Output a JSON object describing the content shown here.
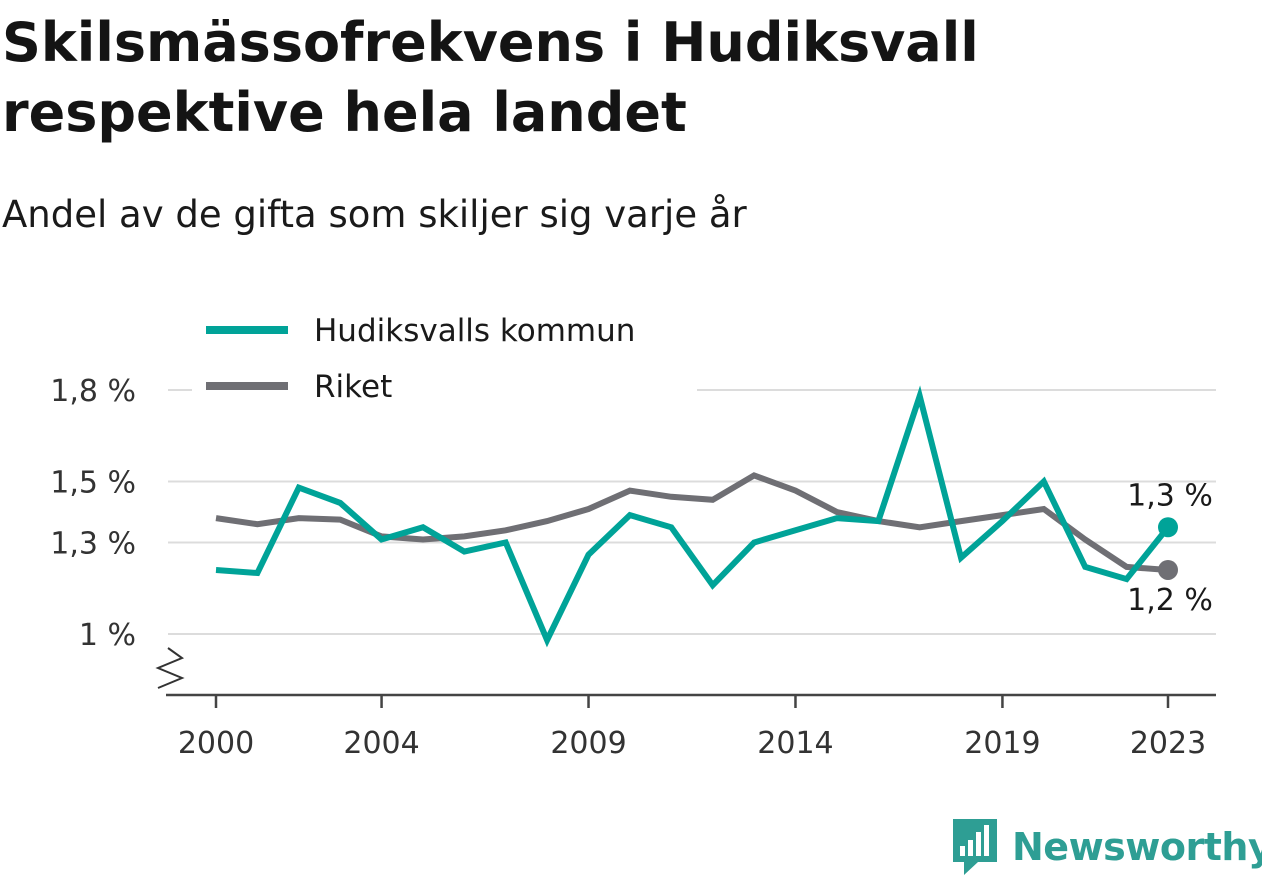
{
  "header": {
    "title": "Skilsmässofrekvens i Hudiksvall respektive hela landet",
    "subtitle": "Andel av de gifta som skiljer sig varje år"
  },
  "brand": {
    "name": "Newsworthy",
    "icon": "newsworthy-logo-icon",
    "color": "#2e9e94"
  },
  "chart_data": {
    "type": "line",
    "title": "Skilsmässofrekvens i Hudiksvall respektive hela landet",
    "subtitle": "Andel av de gifta som skiljer sig varje år",
    "x": [
      2000,
      2001,
      2002,
      2003,
      2004,
      2005,
      2006,
      2007,
      2008,
      2009,
      2010,
      2011,
      2012,
      2013,
      2014,
      2015,
      2016,
      2017,
      2018,
      2019,
      2020,
      2021,
      2022,
      2023
    ],
    "x_ticks": [
      2000,
      2004,
      2009,
      2014,
      2019,
      2023
    ],
    "y_ticks": [
      {
        "value": 1.0,
        "label": "1 %"
      },
      {
        "value": 1.3,
        "label": "1,3 %"
      },
      {
        "value": 1.5,
        "label": "1,5 %"
      },
      {
        "value": 1.8,
        "label": "1,8 %"
      }
    ],
    "ylim": [
      0.86,
      1.81
    ],
    "y_axis_broken": true,
    "grid": true,
    "legend_position": "top-left",
    "series": [
      {
        "name": "Hudiksvalls kommun",
        "color": "#00a398",
        "values": [
          1.21,
          1.2,
          1.48,
          1.43,
          1.31,
          1.35,
          1.27,
          1.3,
          0.98,
          1.26,
          1.39,
          1.35,
          1.16,
          1.3,
          1.34,
          1.38,
          1.37,
          1.78,
          1.25,
          1.37,
          1.5,
          1.22,
          1.18,
          1.35
        ],
        "end_label": "1,3 %"
      },
      {
        "name": "Riket",
        "color": "#6f6f74",
        "values": [
          1.38,
          1.36,
          1.38,
          1.375,
          1.32,
          1.31,
          1.32,
          1.34,
          1.37,
          1.41,
          1.47,
          1.45,
          1.44,
          1.52,
          1.47,
          1.4,
          1.37,
          1.35,
          1.37,
          1.39,
          1.41,
          1.31,
          1.22,
          1.21
        ],
        "end_label": "1,2 %"
      }
    ]
  }
}
